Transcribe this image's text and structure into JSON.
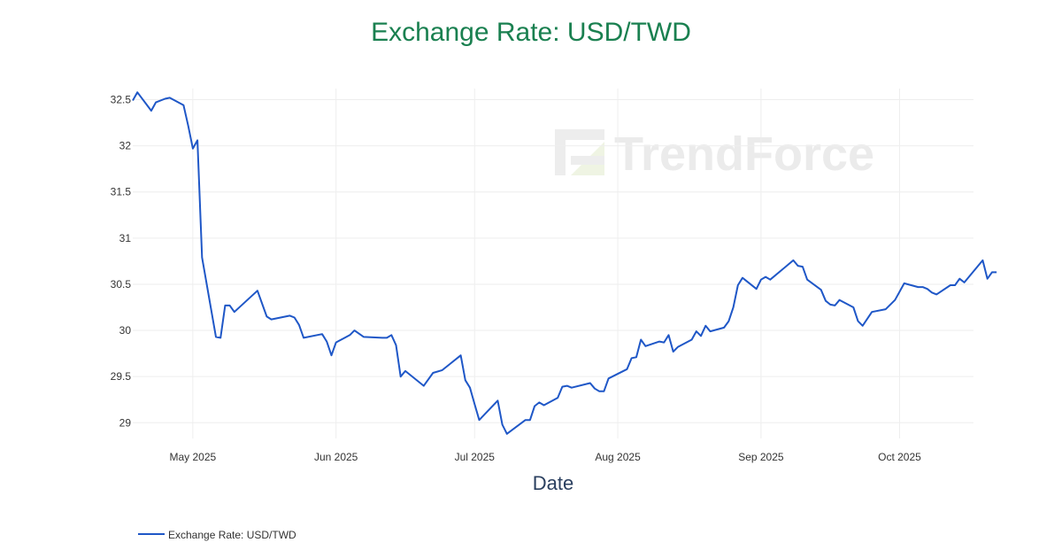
{
  "chart_data": {
    "type": "line",
    "title": "Exchange Rate: USD/TWD",
    "xlabel": "Date",
    "ylabel": "",
    "x_tick_labels": [
      "May 2025",
      "Jun 2025",
      "Jul 2025",
      "Aug 2025",
      "Sep 2025",
      "Oct 2025"
    ],
    "y_tick_labels": [
      "29",
      "29.5",
      "30",
      "30.5",
      "31",
      "31.5",
      "32",
      "32.5"
    ],
    "ylim": [
      28.83,
      32.62
    ],
    "xlim": [
      "2025-04-18",
      "2025-10-17"
    ],
    "grid": true,
    "legend": "bottom-left",
    "watermark": "TrendForce",
    "series": [
      {
        "name": "Exchange Rate: USD/TWD",
        "color": "#1f57c7",
        "points": [
          [
            "2025-04-18",
            32.49
          ],
          [
            "2025-04-19",
            32.58
          ],
          [
            "2025-04-22",
            32.38
          ],
          [
            "2025-04-23",
            32.47
          ],
          [
            "2025-04-25",
            32.51
          ],
          [
            "2025-04-26",
            32.52
          ],
          [
            "2025-04-29",
            32.44
          ],
          [
            "2025-04-30",
            32.22
          ],
          [
            "2025-05-01",
            31.97
          ],
          [
            "2025-05-02",
            32.06
          ],
          [
            "2025-05-03",
            30.79
          ],
          [
            "2025-05-06",
            29.93
          ],
          [
            "2025-05-07",
            29.92
          ],
          [
            "2025-05-08",
            30.27
          ],
          [
            "2025-05-09",
            30.27
          ],
          [
            "2025-05-10",
            30.2
          ],
          [
            "2025-05-15",
            30.43
          ],
          [
            "2025-05-17",
            30.15
          ],
          [
            "2025-05-18",
            30.12
          ],
          [
            "2025-05-22",
            30.16
          ],
          [
            "2025-05-23",
            30.14
          ],
          [
            "2025-05-24",
            30.06
          ],
          [
            "2025-05-25",
            29.92
          ],
          [
            "2025-05-29",
            29.96
          ],
          [
            "2025-05-30",
            29.88
          ],
          [
            "2025-05-31",
            29.73
          ],
          [
            "2025-06-01",
            29.87
          ],
          [
            "2025-06-04",
            29.95
          ],
          [
            "2025-06-05",
            30.0
          ],
          [
            "2025-06-07",
            29.93
          ],
          [
            "2025-06-11",
            29.92
          ],
          [
            "2025-06-12",
            29.92
          ],
          [
            "2025-06-13",
            29.95
          ],
          [
            "2025-06-14",
            29.84
          ],
          [
            "2025-06-15",
            29.5
          ],
          [
            "2025-06-16",
            29.56
          ],
          [
            "2025-06-20",
            29.4
          ],
          [
            "2025-06-22",
            29.54
          ],
          [
            "2025-06-24",
            29.57
          ],
          [
            "2025-06-28",
            29.73
          ],
          [
            "2025-06-29",
            29.46
          ],
          [
            "2025-06-30",
            29.38
          ],
          [
            "2025-07-01",
            29.2
          ],
          [
            "2025-07-02",
            29.03
          ],
          [
            "2025-07-06",
            29.24
          ],
          [
            "2025-07-07",
            28.98
          ],
          [
            "2025-07-08",
            28.88
          ],
          [
            "2025-07-12",
            29.03
          ],
          [
            "2025-07-13",
            29.03
          ],
          [
            "2025-07-14",
            29.18
          ],
          [
            "2025-07-15",
            29.22
          ],
          [
            "2025-07-16",
            29.19
          ],
          [
            "2025-07-19",
            29.27
          ],
          [
            "2025-07-20",
            29.39
          ],
          [
            "2025-07-21",
            29.4
          ],
          [
            "2025-07-22",
            29.38
          ],
          [
            "2025-07-26",
            29.43
          ],
          [
            "2025-07-27",
            29.37
          ],
          [
            "2025-07-28",
            29.34
          ],
          [
            "2025-07-29",
            29.34
          ],
          [
            "2025-07-30",
            29.48
          ],
          [
            "2025-08-03",
            29.58
          ],
          [
            "2025-08-04",
            29.7
          ],
          [
            "2025-08-05",
            29.71
          ],
          [
            "2025-08-06",
            29.9
          ],
          [
            "2025-08-07",
            29.83
          ],
          [
            "2025-08-10",
            29.88
          ],
          [
            "2025-08-11",
            29.87
          ],
          [
            "2025-08-12",
            29.95
          ],
          [
            "2025-08-13",
            29.77
          ],
          [
            "2025-08-14",
            29.82
          ],
          [
            "2025-08-17",
            29.9
          ],
          [
            "2025-08-18",
            29.99
          ],
          [
            "2025-08-19",
            29.94
          ],
          [
            "2025-08-20",
            30.05
          ],
          [
            "2025-08-21",
            29.99
          ],
          [
            "2025-08-24",
            30.03
          ],
          [
            "2025-08-25",
            30.1
          ],
          [
            "2025-08-26",
            30.25
          ],
          [
            "2025-08-27",
            30.49
          ],
          [
            "2025-08-28",
            30.57
          ],
          [
            "2025-08-31",
            30.45
          ],
          [
            "2025-09-01",
            30.55
          ],
          [
            "2025-09-02",
            30.58
          ],
          [
            "2025-09-03",
            30.55
          ],
          [
            "2025-09-08",
            30.76
          ],
          [
            "2025-09-09",
            30.7
          ],
          [
            "2025-09-10",
            30.69
          ],
          [
            "2025-09-11",
            30.55
          ],
          [
            "2025-09-14",
            30.44
          ],
          [
            "2025-09-15",
            30.32
          ],
          [
            "2025-09-16",
            30.28
          ],
          [
            "2025-09-17",
            30.27
          ],
          [
            "2025-09-18",
            30.33
          ],
          [
            "2025-09-21",
            30.25
          ],
          [
            "2025-09-22",
            30.1
          ],
          [
            "2025-09-23",
            30.05
          ],
          [
            "2025-09-25",
            30.2
          ],
          [
            "2025-09-28",
            30.23
          ],
          [
            "2025-09-30",
            30.33
          ],
          [
            "2025-10-01",
            30.42
          ],
          [
            "2025-10-02",
            30.51
          ],
          [
            "2025-10-05",
            30.47
          ],
          [
            "2025-10-06",
            30.47
          ],
          [
            "2025-10-07",
            30.45
          ],
          [
            "2025-10-08",
            30.41
          ],
          [
            "2025-10-09",
            30.39
          ],
          [
            "2025-10-12",
            30.49
          ],
          [
            "2025-10-13",
            30.49
          ],
          [
            "2025-10-14",
            30.56
          ],
          [
            "2025-10-15",
            30.52
          ],
          [
            "2025-10-19",
            30.76
          ],
          [
            "2025-10-20",
            30.56
          ],
          [
            "2025-10-21",
            30.63
          ],
          [
            "2025-10-22",
            30.63
          ]
        ]
      }
    ]
  }
}
